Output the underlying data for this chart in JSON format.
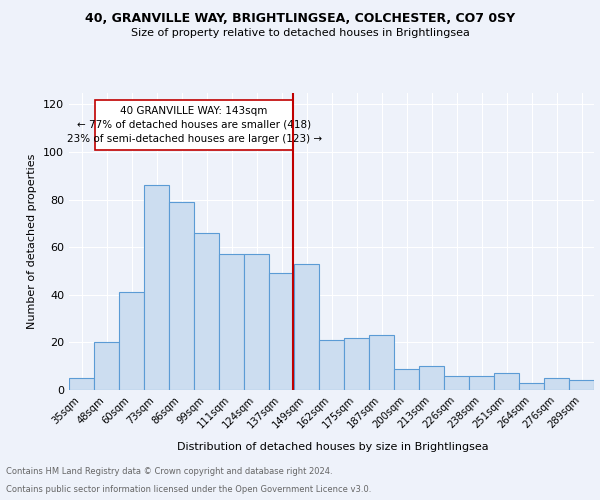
{
  "title1": "40, GRANVILLE WAY, BRIGHTLINGSEA, COLCHESTER, CO7 0SY",
  "title2": "Size of property relative to detached houses in Brightlingsea",
  "xlabel": "Distribution of detached houses by size in Brightlingsea",
  "ylabel": "Number of detached properties",
  "categories": [
    "35sqm",
    "48sqm",
    "60sqm",
    "73sqm",
    "86sqm",
    "99sqm",
    "111sqm",
    "124sqm",
    "137sqm",
    "149sqm",
    "162sqm",
    "175sqm",
    "187sqm",
    "200sqm",
    "213sqm",
    "226sqm",
    "238sqm",
    "251sqm",
    "264sqm",
    "276sqm",
    "289sqm"
  ],
  "values": [
    5,
    20,
    41,
    86,
    79,
    66,
    57,
    57,
    49,
    53,
    21,
    22,
    23,
    9,
    10,
    6,
    6,
    7,
    3,
    5,
    4
  ],
  "bar_color": "#ccddf0",
  "bar_edge_color": "#5b9bd5",
  "vline_color": "#c00000",
  "annotation_text": "40 GRANVILLE WAY: 143sqm\n← 77% of detached houses are smaller (418)\n23% of semi-detached houses are larger (123) →",
  "ylim": [
    0,
    125
  ],
  "yticks": [
    0,
    20,
    40,
    60,
    80,
    100,
    120
  ],
  "footer1": "Contains HM Land Registry data © Crown copyright and database right 2024.",
  "footer2": "Contains public sector information licensed under the Open Government Licence v3.0.",
  "background_color": "#eef2fa",
  "grid_color": "#ffffff"
}
